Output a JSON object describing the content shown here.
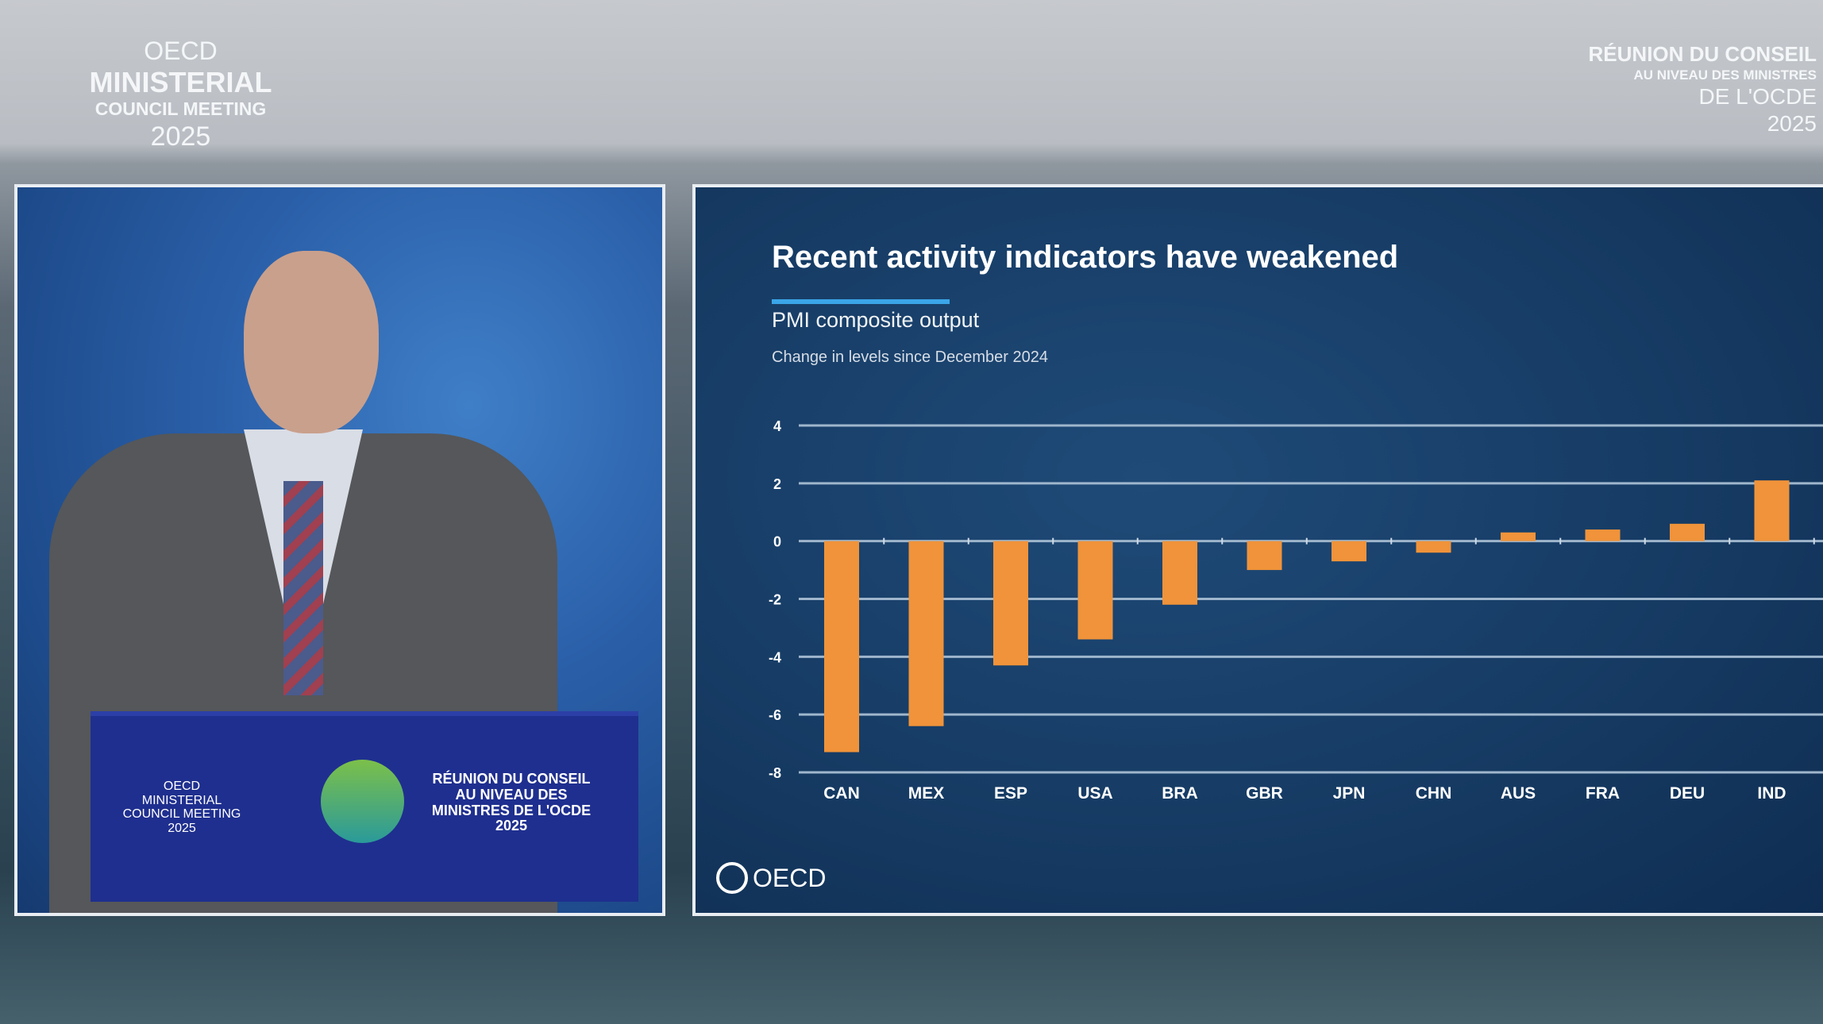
{
  "branding_left": {
    "line1": "OECD",
    "line2": "MINISTERIAL",
    "line3": "COUNCIL MEETING",
    "line4": "2025"
  },
  "branding_right": {
    "line1": "RÉUNION DU CONSEIL",
    "line2": "AU NIVEAU DES MINISTRES",
    "line3": "DE L'OCDE",
    "line4": "2025"
  },
  "podium": {
    "left": "OECD MINISTERIAL COUNCIL MEETING 2025",
    "right": "RÉUNION DU CONSEIL AU NIVEAU DES MINISTRES DE L'OCDE 2025"
  },
  "slide": {
    "footer_logo": "OECD"
  },
  "chart_data": {
    "type": "bar",
    "title": "Recent activity indicators have weakened",
    "subtitle": "PMI composite output",
    "note": "Change in levels since December 2024",
    "xlabel": "",
    "ylabel": "",
    "ylim": [
      -8,
      4
    ],
    "yticks": [
      4,
      2,
      0,
      -2,
      -4,
      -6,
      -8
    ],
    "grid": true,
    "categories": [
      "CAN",
      "MEX",
      "ESP",
      "USA",
      "BRA",
      "GBR",
      "JPN",
      "CHN",
      "AUS",
      "FRA",
      "DEU",
      "IND"
    ],
    "values": [
      -7.3,
      -6.4,
      -4.3,
      -3.4,
      -2.2,
      -1.0,
      -0.7,
      -0.4,
      0.3,
      0.4,
      0.6,
      2.1
    ],
    "bar_color": "#f0933a"
  }
}
